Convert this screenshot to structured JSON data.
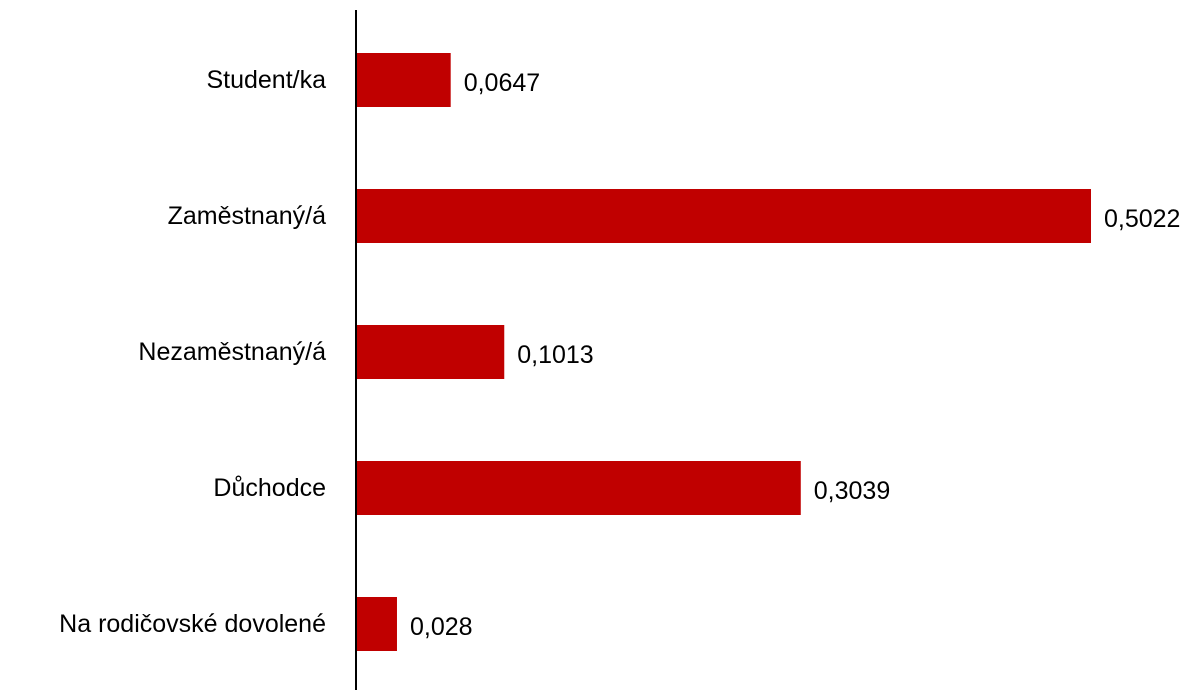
{
  "chart_data": {
    "type": "bar",
    "orientation": "horizontal",
    "categories": [
      "Student/ka",
      "Zaměstnaný/á",
      "Nezaměstnaný/á",
      "Důchodce",
      "Na rodičovské dovolené"
    ],
    "values": [
      0.0647,
      0.5022,
      0.1013,
      0.3039,
      0.028
    ],
    "value_labels": [
      "0,0647",
      "0,5022",
      "0,1013",
      "0,3039",
      "0,028"
    ],
    "bar_color": "#c00000",
    "axis_color": "#000000",
    "title": "",
    "xlabel": "",
    "ylabel": "",
    "xlim": [
      0,
      0.5022
    ],
    "grid": false,
    "legend": "none"
  }
}
